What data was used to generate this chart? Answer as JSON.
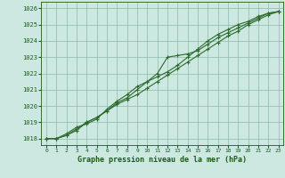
{
  "xlabel": "Graphe pression niveau de la mer (hPa)",
  "x": [
    0,
    1,
    2,
    3,
    4,
    5,
    6,
    7,
    8,
    9,
    10,
    11,
    12,
    13,
    14,
    15,
    16,
    17,
    18,
    19,
    20,
    21,
    22,
    23
  ],
  "line1": [
    1018.0,
    1018.0,
    1018.2,
    1018.6,
    1019.0,
    1019.3,
    1019.7,
    1020.1,
    1020.4,
    1020.7,
    1021.1,
    1021.5,
    1021.9,
    1022.3,
    1022.7,
    1023.1,
    1023.5,
    1023.9,
    1024.3,
    1024.6,
    1025.0,
    1025.3,
    1025.6,
    1025.8
  ],
  "line2": [
    1018.0,
    1018.0,
    1018.2,
    1018.5,
    1019.0,
    1019.3,
    1019.7,
    1020.2,
    1020.5,
    1021.0,
    1021.5,
    1022.0,
    1023.0,
    1023.1,
    1023.2,
    1023.4,
    1023.8,
    1024.2,
    1024.5,
    1024.8,
    1025.1,
    1025.4,
    1025.7,
    1025.8
  ],
  "line3": [
    1018.0,
    1018.0,
    1018.3,
    1018.7,
    1018.9,
    1019.2,
    1019.8,
    1020.3,
    1020.7,
    1021.2,
    1021.5,
    1021.8,
    1022.1,
    1022.5,
    1023.0,
    1023.5,
    1024.0,
    1024.4,
    1024.7,
    1025.0,
    1025.2,
    1025.5,
    1025.7,
    1025.8
  ],
  "line_color": "#2d6a2d",
  "bg_color": "#cce8e0",
  "plot_bg": "#cce8e0",
  "grid_color": "#8abcaa",
  "text_color": "#1a5c1a",
  "ylim": [
    1017.6,
    1026.4
  ],
  "yticks": [
    1018,
    1019,
    1020,
    1021,
    1022,
    1023,
    1024,
    1025,
    1026
  ],
  "xticks": [
    0,
    1,
    2,
    3,
    4,
    5,
    6,
    7,
    8,
    9,
    10,
    11,
    12,
    13,
    14,
    15,
    16,
    17,
    18,
    19,
    20,
    21,
    22,
    23
  ],
  "marker": "+",
  "marker_size": 3,
  "linewidth": 0.8
}
